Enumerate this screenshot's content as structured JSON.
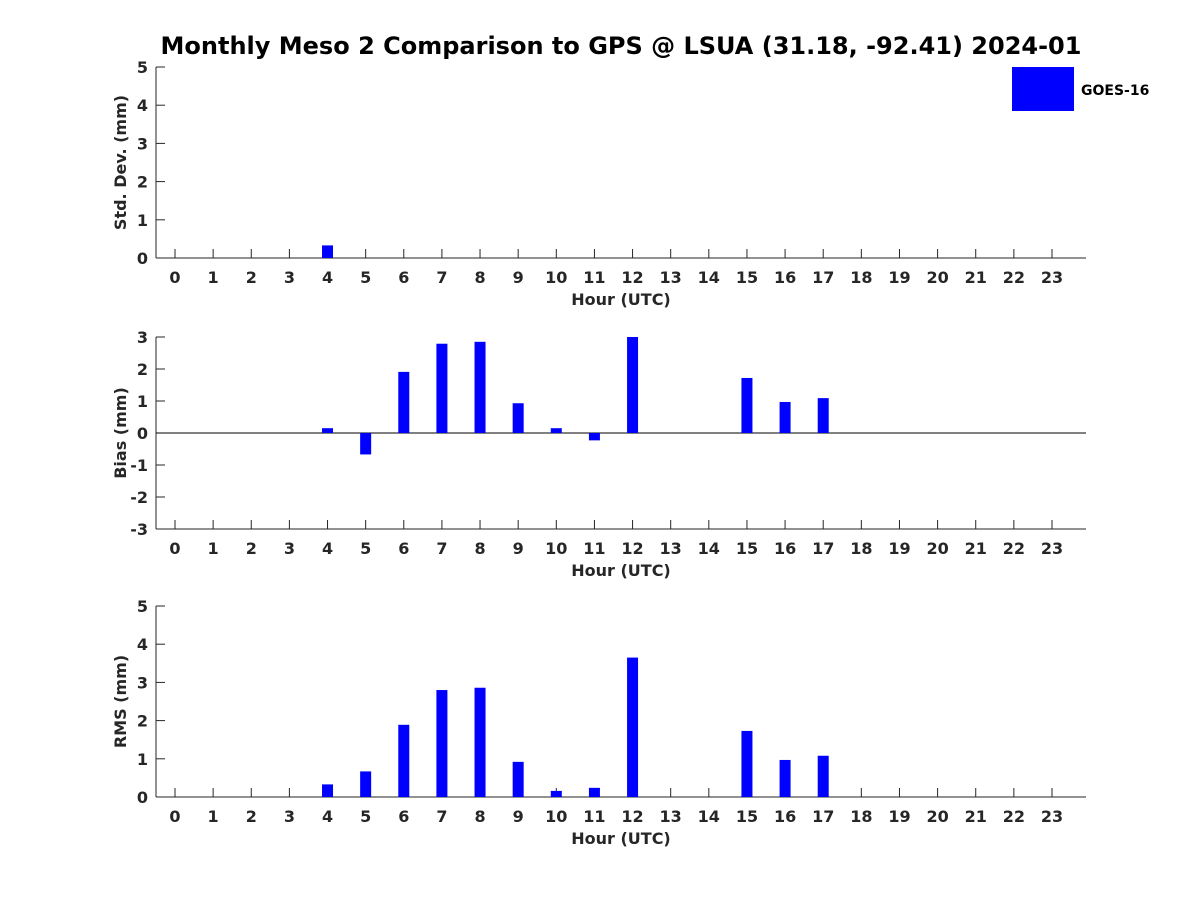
{
  "chart_data": {
    "title": "Monthly Meso 2 Comparison to GPS @ LSUA (31.18, -92.41) 2024-01",
    "legend": {
      "label": "GOES-16",
      "placement": "top-right",
      "color": "#0000ff"
    },
    "bar_color": "#0000ff",
    "panels": [
      {
        "type": "bar",
        "categories": [
          "0",
          "1",
          "2",
          "3",
          "4",
          "5",
          "6",
          "7",
          "8",
          "9",
          "10",
          "11",
          "12",
          "13",
          "14",
          "15",
          "16",
          "17",
          "18",
          "19",
          "20",
          "21",
          "22",
          "23"
        ],
        "values": [
          null,
          null,
          null,
          null,
          0.33,
          null,
          null,
          null,
          null,
          null,
          null,
          null,
          null,
          null,
          null,
          null,
          null,
          null,
          null,
          null,
          null,
          null,
          null,
          null
        ],
        "ylabel": "Std. Dev. (mm)",
        "xlabel": "Hour (UTC)",
        "ylim": [
          0,
          5
        ],
        "yticks": [
          "0",
          "1",
          "2",
          "3",
          "4",
          "5"
        ],
        "zero_line": false
      },
      {
        "type": "bar",
        "categories": [
          "0",
          "1",
          "2",
          "3",
          "4",
          "5",
          "6",
          "7",
          "8",
          "9",
          "10",
          "11",
          "12",
          "13",
          "14",
          "15",
          "16",
          "17",
          "18",
          "19",
          "20",
          "21",
          "22",
          "23"
        ],
        "values": [
          null,
          null,
          null,
          null,
          0.15,
          -0.67,
          1.91,
          2.79,
          2.85,
          0.93,
          0.15,
          -0.23,
          3.0,
          null,
          null,
          1.72,
          0.97,
          1.09,
          null,
          null,
          null,
          null,
          null,
          null
        ],
        "ylabel": "Bias (mm)",
        "xlabel": "Hour (UTC)",
        "ylim": [
          -3,
          3
        ],
        "yticks": [
          "-3",
          "-2",
          "-1",
          "0",
          "1",
          "2",
          "3"
        ],
        "zero_line": true
      },
      {
        "type": "bar",
        "categories": [
          "0",
          "1",
          "2",
          "3",
          "4",
          "5",
          "6",
          "7",
          "8",
          "9",
          "10",
          "11",
          "12",
          "13",
          "14",
          "15",
          "16",
          "17",
          "18",
          "19",
          "20",
          "21",
          "22",
          "23"
        ],
        "values": [
          null,
          null,
          null,
          null,
          0.33,
          0.67,
          1.89,
          2.8,
          2.86,
          0.92,
          0.16,
          0.24,
          3.65,
          null,
          null,
          1.73,
          0.97,
          1.08,
          null,
          null,
          null,
          null,
          null,
          null
        ],
        "ylabel": "RMS (mm)",
        "xlabel": "Hour (UTC)",
        "ylim": [
          0,
          5
        ],
        "yticks": [
          "0",
          "1",
          "2",
          "3",
          "4",
          "5"
        ],
        "zero_line": false
      }
    ]
  }
}
